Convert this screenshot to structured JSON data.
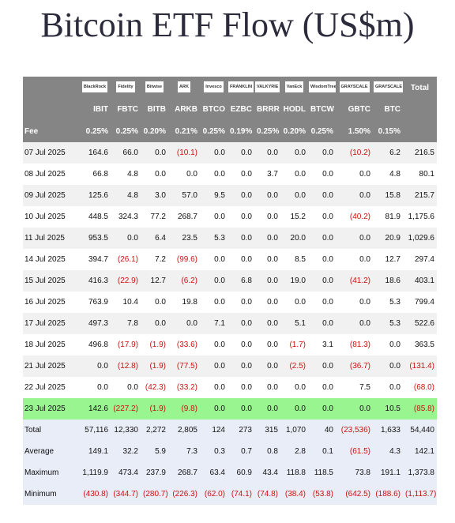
{
  "title": "Bitcoin ETF Flow (US$m)",
  "table": {
    "logos": [
      "BlackRock",
      "Fidelity",
      "Bitwise",
      "ARK",
      "Invesco",
      "FRANKLIN",
      "VALKYRIE",
      "VanEck",
      "WisdomTree",
      "GRAYSCALE",
      "GRAYSCALE"
    ],
    "total_header": "Total",
    "tickers": [
      "IBIT",
      "FBTC",
      "BITB",
      "ARKB",
      "BTCO",
      "EZBC",
      "BRRR",
      "HODL",
      "BTCW",
      "GBTC",
      "BTC"
    ],
    "fee_label": "Fee",
    "fees": [
      "0.25%",
      "0.25%",
      "0.20%",
      "0.21%",
      "0.25%",
      "0.19%",
      "0.25%",
      "0.20%",
      "0.25%",
      "1.50%",
      "0.15%"
    ],
    "rows": [
      [
        "07 Jul 2025",
        "164.6",
        "66.0",
        "0.0",
        "(10.1)",
        "0.0",
        "0.0",
        "0.0",
        "0.0",
        "0.0",
        "(10.2)",
        "6.2",
        "216.5"
      ],
      [
        "08 Jul 2025",
        "66.8",
        "4.8",
        "0.0",
        "0.0",
        "0.0",
        "0.0",
        "3.7",
        "0.0",
        "0.0",
        "0.0",
        "4.8",
        "80.1"
      ],
      [
        "09 Jul 2025",
        "125.6",
        "4.8",
        "3.0",
        "57.0",
        "9.5",
        "0.0",
        "0.0",
        "0.0",
        "0.0",
        "0.0",
        "15.8",
        "215.7"
      ],
      [
        "10 Jul 2025",
        "448.5",
        "324.3",
        "77.2",
        "268.7",
        "0.0",
        "0.0",
        "0.0",
        "15.2",
        "0.0",
        "(40.2)",
        "81.9",
        "1,175.6"
      ],
      [
        "11 Jul 2025",
        "953.5",
        "0.0",
        "6.4",
        "23.5",
        "5.3",
        "0.0",
        "0.0",
        "20.0",
        "0.0",
        "0.0",
        "20.9",
        "1,029.6"
      ],
      [
        "14 Jul 2025",
        "394.7",
        "(26.1)",
        "7.2",
        "(99.6)",
        "0.0",
        "0.0",
        "0.0",
        "8.5",
        "0.0",
        "0.0",
        "12.7",
        "297.4"
      ],
      [
        "15 Jul 2025",
        "416.3",
        "(22.9)",
        "12.7",
        "(6.2)",
        "0.0",
        "6.8",
        "0.0",
        "19.0",
        "0.0",
        "(41.2)",
        "18.6",
        "403.1"
      ],
      [
        "16 Jul 2025",
        "763.9",
        "10.4",
        "0.0",
        "19.8",
        "0.0",
        "0.0",
        "0.0",
        "0.0",
        "0.0",
        "0.0",
        "5.3",
        "799.4"
      ],
      [
        "17 Jul 2025",
        "497.3",
        "7.8",
        "0.0",
        "0.0",
        "7.1",
        "0.0",
        "0.0",
        "5.1",
        "0.0",
        "0.0",
        "5.3",
        "522.6"
      ],
      [
        "18 Jul 2025",
        "496.8",
        "(17.9)",
        "(1.9)",
        "(33.6)",
        "0.0",
        "0.0",
        "0.0",
        "(1.7)",
        "3.1",
        "(81.3)",
        "0.0",
        "363.5"
      ],
      [
        "21 Jul 2025",
        "0.0",
        "(12.8)",
        "(1.9)",
        "(77.5)",
        "0.0",
        "0.0",
        "0.0",
        "(2.5)",
        "0.0",
        "(36.7)",
        "0.0",
        "(131.4)"
      ],
      [
        "22 Jul 2025",
        "0.0",
        "0.0",
        "(42.3)",
        "(33.2)",
        "0.0",
        "0.0",
        "0.0",
        "0.0",
        "0.0",
        "7.5",
        "0.0",
        "(68.0)"
      ],
      [
        "23 Jul 2025",
        "142.6",
        "(227.2)",
        "(1.9)",
        "(9.8)",
        "0.0",
        "0.0",
        "0.0",
        "0.0",
        "0.0",
        "0.0",
        "10.5",
        "(85.8)"
      ]
    ],
    "summary": [
      [
        "Total",
        "57,116",
        "12,330",
        "2,272",
        "2,805",
        "124",
        "273",
        "315",
        "1,070",
        "40",
        "(23,536)",
        "1,633",
        "54,440"
      ],
      [
        "Average",
        "149.1",
        "32.2",
        "5.9",
        "7.3",
        "0.3",
        "0.7",
        "0.8",
        "2.8",
        "0.1",
        "(61.5)",
        "4.3",
        "142.1"
      ],
      [
        "Maximum",
        "1,119.9",
        "473.4",
        "237.9",
        "268.7",
        "63.4",
        "60.9",
        "43.4",
        "118.8",
        "118.5",
        "73.8",
        "191.1",
        "1,373.8"
      ],
      [
        "Minimum",
        "(430.8)",
        "(344.7)",
        "(280.7)",
        "(226.3)",
        "(62.0)",
        "(74.1)",
        "(74.8)",
        "(38.4)",
        "(53.8)",
        "(642.5)",
        "(188.6)",
        "(1,113.7)"
      ]
    ]
  }
}
